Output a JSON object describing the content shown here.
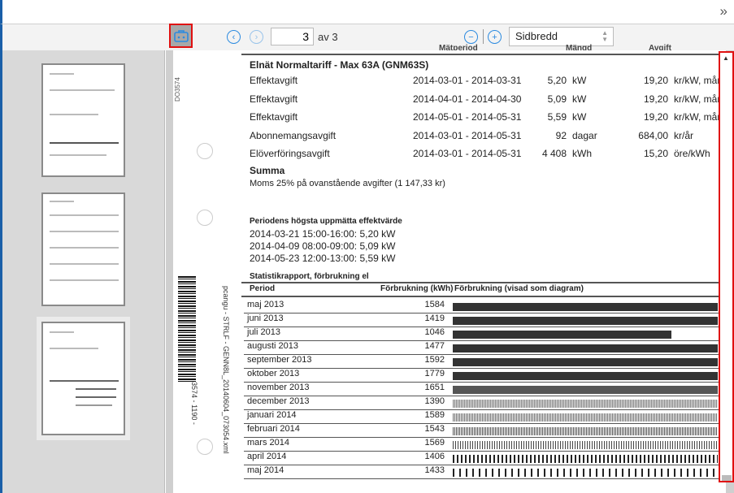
{
  "toolbar": {
    "current_page": "3",
    "page_count": "av 3",
    "zoom_mode": "Sidbredd",
    "icons": [
      "briefcase-icon",
      "chevron-left-icon",
      "chevron-right-icon",
      "zoom-out-icon",
      "zoom-in-icon",
      "expand-icon"
    ]
  },
  "document": {
    "side_code": "DO3574",
    "barcode_text": "3574 - 1190 -",
    "file_ref": "pcangu - STRLF - GENN8L_20140604_073054.xml",
    "header_cols": [
      "Mätperiod",
      "Mängd",
      "Avgift"
    ],
    "section_title": "Elnät Normaltariff - Max 63A (GNM63S)",
    "fees": [
      {
        "name": "Effektavgift",
        "period": "2014-03-01 - 2014-03-31",
        "qty": "5,20",
        "unit": "kW",
        "price": "19,20",
        "price_unit": "kr/kW, mån"
      },
      {
        "name": "Effektavgift",
        "period": "2014-04-01 - 2014-04-30",
        "qty": "5,09",
        "unit": "kW",
        "price": "19,20",
        "price_unit": "kr/kW, mån"
      },
      {
        "name": "Effektavgift",
        "period": "2014-05-01 - 2014-05-31",
        "qty": "5,59",
        "unit": "kW",
        "price": "19,20",
        "price_unit": "kr/kW, mån"
      },
      {
        "name": "Abonnemangsavgift",
        "period": "2014-03-01 - 2014-05-31",
        "qty": "92",
        "unit": "dagar",
        "price": "684,00",
        "price_unit": "kr/år"
      },
      {
        "name": "Elöverföringsavgift",
        "period": "2014-03-01 - 2014-05-31",
        "qty": "4 408",
        "unit": "kWh",
        "price": "15,20",
        "price_unit": "öre/kWh"
      }
    ],
    "summa": "Summa",
    "moms": "Moms 25% på ovanstående avgifter (1 147,33 kr)",
    "peak_title": "Periodens högsta uppmätta effektvärde",
    "peaks": [
      "2014-03-21  15:00-16:00: 5,20 kW",
      "2014-04-09  08:00-09:00: 5,09 kW",
      "2014-05-23  12:00-13:00: 5,59 kW"
    ],
    "stat_title": "Statistikrapport, förbrukning el",
    "stat_cols": [
      "Period",
      "Förbrukning (kWh)",
      "Förbrukning (visad som diagram)"
    ],
    "stats": [
      {
        "period": "maj 2013",
        "kwh": 1584
      },
      {
        "period": "juni 2013",
        "kwh": 1419
      },
      {
        "period": "juli 2013",
        "kwh": 1046
      },
      {
        "period": "augusti 2013",
        "kwh": 1477
      },
      {
        "period": "september 2013",
        "kwh": 1592
      },
      {
        "period": "oktober 2013",
        "kwh": 1779
      },
      {
        "period": "november 2013",
        "kwh": 1651
      },
      {
        "period": "december 2013",
        "kwh": 1390
      },
      {
        "period": "januari 2014",
        "kwh": 1589
      },
      {
        "period": "februari 2014",
        "kwh": 1543
      },
      {
        "period": "mars 2014",
        "kwh": 1569
      },
      {
        "period": "april 2014",
        "kwh": 1406
      },
      {
        "period": "maj 2014",
        "kwh": 1433
      }
    ]
  },
  "thumbnails": [
    {
      "page": 1
    },
    {
      "page": 2
    },
    {
      "page": 3,
      "selected": true
    }
  ]
}
